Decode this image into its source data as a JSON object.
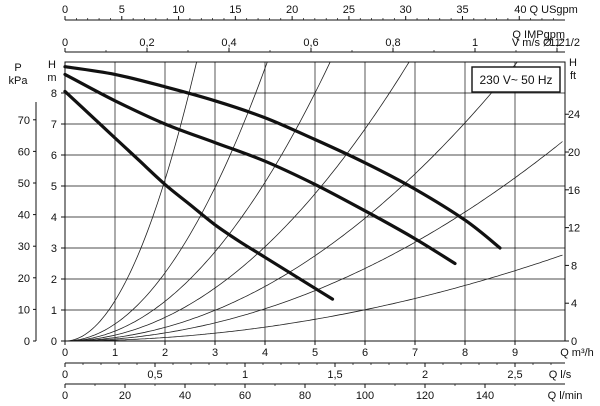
{
  "chart_data": {
    "type": "line",
    "title": "",
    "legend_label": "230 V~ 50 Hz",
    "legend_position": "top-right",
    "grid": true,
    "main_x": {
      "label": "Q m³/h",
      "range": [
        0,
        10
      ],
      "ticks": [
        0,
        1,
        2,
        3,
        4,
        5,
        6,
        7,
        8,
        9
      ]
    },
    "left_head": {
      "unit": "H",
      "unit2": "m",
      "range": [
        0,
        9
      ],
      "ticks": [
        0,
        1,
        2,
        3,
        4,
        5,
        6,
        7,
        8
      ]
    },
    "left_pressure": {
      "unit": "P",
      "unit2": "kPa",
      "ticks": [
        0,
        10,
        20,
        30,
        40,
        50,
        60,
        70
      ]
    },
    "right_head": {
      "unit": "H",
      "unit2": "ft",
      "ticks": [
        0,
        4,
        8,
        12,
        16,
        20,
        24
      ]
    },
    "top_usgpm": {
      "label": "Q USgpm",
      "ticks": [
        0,
        5,
        10,
        15,
        20,
        25,
        30,
        35,
        40
      ]
    },
    "top_impgpm": {
      "label": "Q IMPgpm"
    },
    "top_velocity": {
      "label": "V m/s Ø 1\"1/2",
      "ticks": [
        "0",
        "0,2",
        "0,4",
        "0,6",
        "0,8",
        "1",
        "1,2"
      ]
    },
    "bottom_ls": {
      "label": "Q l/s",
      "ticks": [
        "0",
        "0,5",
        "1",
        "1,5",
        "2",
        "2,5"
      ]
    },
    "bottom_lmin": {
      "label": "Q l/min",
      "ticks": [
        "0",
        "20",
        "40",
        "60",
        "80",
        "100",
        "120",
        "140"
      ]
    },
    "series": [
      {
        "x": [
          0,
          1,
          2,
          3,
          4,
          5,
          6,
          7,
          8,
          8.7
        ],
        "y": [
          8.85,
          8.6,
          8.2,
          7.75,
          7.2,
          6.5,
          5.75,
          4.9,
          3.9,
          3.0
        ]
      },
      {
        "x": [
          0,
          1,
          2,
          3,
          4,
          5,
          6,
          7,
          7.8
        ],
        "y": [
          8.6,
          7.75,
          7.0,
          6.4,
          5.8,
          5.05,
          4.2,
          3.3,
          2.5
        ]
      },
      {
        "x": [
          0,
          0.5,
          1,
          1.5,
          2,
          2.5,
          3,
          3.5,
          4,
          4.5,
          5,
          5.35
        ],
        "y": [
          8.05,
          7.3,
          6.55,
          5.8,
          5.05,
          4.4,
          3.75,
          3.2,
          2.7,
          2.2,
          1.7,
          1.35
        ]
      }
    ],
    "system_curves": [
      {
        "k": 1.3
      },
      {
        "k": 0.55
      },
      {
        "k": 0.32
      },
      {
        "k": 0.19
      },
      {
        "k": 0.11
      },
      {
        "k": 0.065
      },
      {
        "k": 0.028
      }
    ]
  }
}
